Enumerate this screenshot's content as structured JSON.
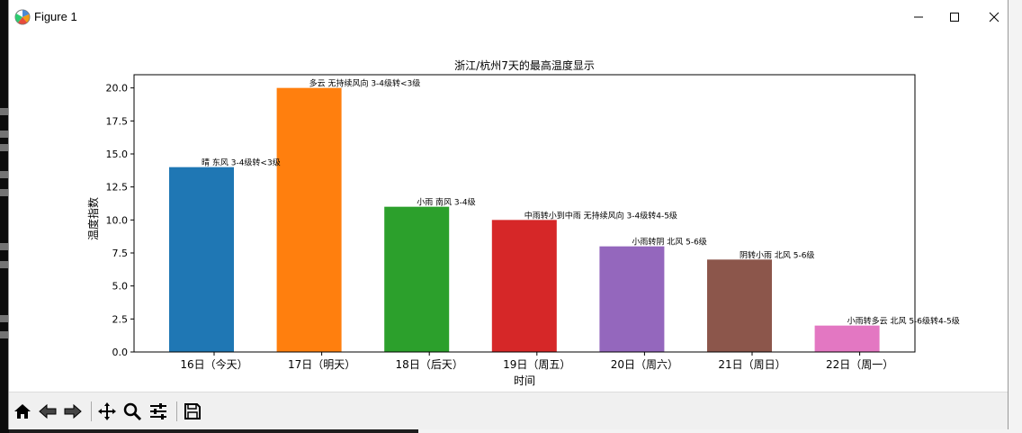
{
  "window": {
    "title": "Figure 1"
  },
  "chart_data": {
    "type": "bar",
    "title": "浙江/杭州7天的最高温度显示",
    "xlabel": "时间",
    "ylabel": "温度指数",
    "ylim": [
      0,
      21
    ],
    "yticks": [
      "0.0",
      "2.5",
      "5.0",
      "7.5",
      "10.0",
      "12.5",
      "15.0",
      "17.5",
      "20.0"
    ],
    "grid": false,
    "categories": [
      "16日（今天）",
      "17日（明天）",
      "18日（后天）",
      "19日（周五）",
      "20日（周六）",
      "21日（周日）",
      "22日（周一）"
    ],
    "values": [
      14,
      20,
      11,
      10,
      8,
      7,
      2
    ],
    "annotations": [
      "晴 东风 3-4级转<3级",
      "多云 无持续风向 3-4级转<3级",
      "小雨 南风 3-4级",
      "中雨转小到中雨 无持续风向 3-4级转4-5级",
      "小雨转阴 北风 5-6级",
      "阴转小雨 北风 5-6级",
      "小雨转多云 北风 5-6级转4-5级"
    ],
    "colors": [
      "#1f77b4",
      "#ff7f0e",
      "#2ca02c",
      "#d62728",
      "#9467bd",
      "#8c564b",
      "#e377c2"
    ]
  },
  "toolbar": {
    "icons": [
      "home-icon",
      "back-arrow-icon",
      "forward-arrow-icon",
      "pan-icon",
      "zoom-icon",
      "configure-icon",
      "save-icon"
    ]
  }
}
